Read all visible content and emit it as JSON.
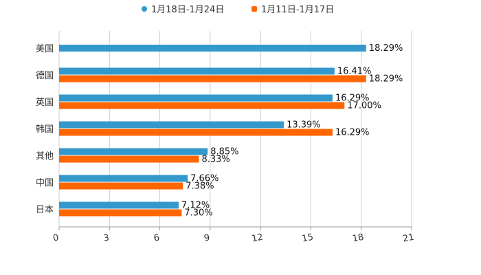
{
  "chart_data": {
    "type": "bar",
    "orientation": "horizontal",
    "title": "",
    "xlabel": "",
    "ylabel": "",
    "xlim": [
      0,
      21
    ],
    "ticks": [
      "0",
      "3",
      "6",
      "9",
      "12",
      "15",
      "18",
      "21"
    ],
    "tick_values": [
      0,
      3,
      6,
      9,
      12,
      15,
      18,
      21
    ],
    "grid": true,
    "legend_position": "top-center",
    "categories": [
      "美国",
      "德国",
      "英国",
      "韩国",
      "其他",
      "中国",
      "日本"
    ],
    "series": [
      {
        "name": "1月18日-1月24日",
        "color": "#3399cc",
        "values": [
          18.29,
          16.41,
          16.29,
          13.39,
          8.85,
          7.66,
          7.12
        ],
        "labels": [
          "18.29%",
          "16.41%",
          "16.29%",
          "13.39%",
          "8.85%",
          "7.66%",
          "7.12%"
        ]
      },
      {
        "name": "1月11日-1月17日",
        "color": "#ff6600",
        "values": [
          null,
          18.29,
          17.0,
          16.29,
          8.33,
          7.38,
          7.3
        ],
        "labels": [
          null,
          "18.29%",
          "17.00%",
          "16.29%",
          "8.33%",
          "7.38%",
          "7.30%"
        ]
      }
    ]
  }
}
